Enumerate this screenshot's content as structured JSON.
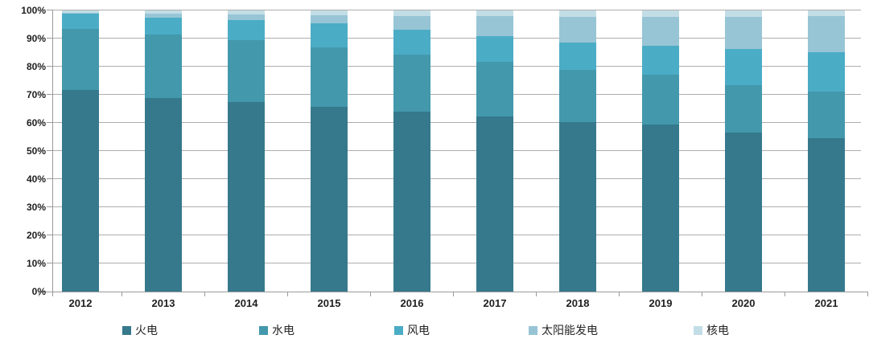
{
  "chart_data": {
    "type": "bar",
    "stacked": true,
    "percent_stacked": true,
    "title": "",
    "xlabel": "",
    "ylabel": "",
    "unit": "%",
    "categories": [
      "2012",
      "2013",
      "2014",
      "2015",
      "2016",
      "2017",
      "2018",
      "2019",
      "2020",
      "2021"
    ],
    "series": [
      {
        "name": "火电",
        "color": "#36798C",
        "values": [
          71.5,
          69.2,
          67.4,
          65.7,
          64.0,
          62.2,
          60.2,
          59.2,
          56.6,
          54.6
        ]
      },
      {
        "name": "水电",
        "color": "#4398AC",
        "values": [
          21.7,
          22.5,
          22.2,
          21.2,
          20.1,
          19.3,
          18.5,
          17.7,
          16.8,
          16.5
        ]
      },
      {
        "name": "风电",
        "color": "#4BACC6",
        "values": [
          5.3,
          6.1,
          7.0,
          8.6,
          9.0,
          9.2,
          9.7,
          10.4,
          12.8,
          13.8
        ]
      },
      {
        "name": "太阳能发电",
        "color": "#97C5D5",
        "values": [
          0.3,
          1.5,
          2.1,
          2.9,
          4.7,
          7.3,
          9.2,
          10.2,
          11.5,
          12.9
        ]
      },
      {
        "name": "核电",
        "color": "#C3DDE6",
        "values": [
          1.1,
          1.2,
          1.5,
          1.8,
          2.2,
          2.0,
          2.4,
          2.4,
          2.3,
          2.2
        ]
      }
    ],
    "y_axis": {
      "min": 0,
      "max": 100,
      "step": 10,
      "tick_labels": [
        "0%",
        "10%",
        "20%",
        "30%",
        "40%",
        "50%",
        "60%",
        "70%",
        "80%",
        "90%",
        "100%"
      ]
    },
    "x_axis": {
      "tick_labels": [
        "2012",
        "2013",
        "2014",
        "2015",
        "2016",
        "2017",
        "2018",
        "2019",
        "2020",
        "2021"
      ]
    },
    "legend": {
      "position": "bottom",
      "labels": [
        "火电",
        "水电",
        "风电",
        "太阳能发电",
        "核电"
      ]
    },
    "grid": true,
    "background": "#FFFFFF",
    "grid_color": "#AEAEAE",
    "axis_color": "#9A9A9A",
    "text_color": "#1F1F1F"
  }
}
